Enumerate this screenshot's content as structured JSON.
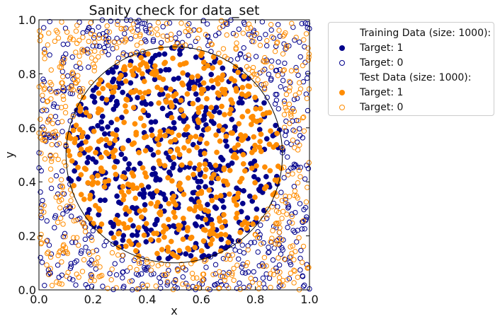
{
  "chart_data": {
    "type": "scatter",
    "title": "Sanity check for data_set",
    "xlabel": "x",
    "ylabel": "y",
    "xlim": [
      0,
      1
    ],
    "ylim": [
      0,
      1
    ],
    "xticks": [
      "0.0",
      "0.2",
      "0.4",
      "0.6",
      "0.8",
      "1.0"
    ],
    "yticks": [
      "0.0",
      "0.2",
      "0.4",
      "0.6",
      "0.8",
      "1.0"
    ],
    "boundary": {
      "shape": "circle",
      "center": [
        0.5,
        0.5
      ],
      "radius": 0.4,
      "color": "#000000"
    },
    "legend_position": "outside-right",
    "legend": [
      {
        "kind": "header",
        "label": "Training Data (size: 1000):"
      },
      {
        "kind": "filled",
        "color": "#00008b",
        "label": "Target: 1"
      },
      {
        "kind": "hollow",
        "color": "#00008b",
        "label": "Target: 0"
      },
      {
        "kind": "header",
        "label": "Test Data (size: 1000):"
      },
      {
        "kind": "filled",
        "color": "#ff8c00",
        "label": "Target: 1"
      },
      {
        "kind": "hollow",
        "color": "#ff8c00",
        "label": "Target: 0"
      }
    ],
    "series": [
      {
        "name": "Training Data (size: 1000):",
        "size": 1000,
        "color": "#00008b",
        "rule": "Target 1 (filled) inside circle, Target 0 (hollow) outside"
      },
      {
        "name": "Test Data (size: 1000):",
        "size": 1000,
        "color": "#ff8c00",
        "rule": "Target 1 (filled) inside circle, Target 0 (hollow) outside"
      }
    ]
  }
}
